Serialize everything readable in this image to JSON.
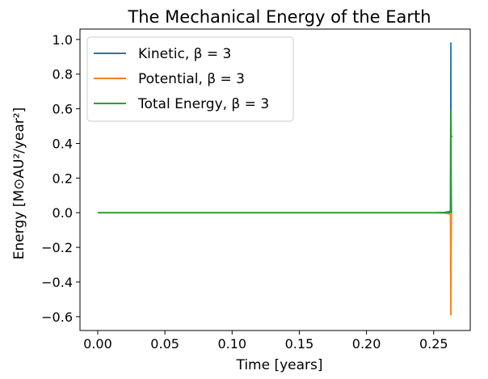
{
  "chart_data": {
    "type": "line",
    "title": "The Mechanical Energy of the Earth",
    "xlabel": "Time [years]",
    "ylabel": "Energy [M⊙AU²/year²]",
    "xlim": [
      -0.0132,
      0.2772
    ],
    "ylim": [
      -0.68,
      1.06
    ],
    "xticks": [
      0.0,
      0.05,
      0.1,
      0.15,
      0.2,
      0.25
    ],
    "xtick_labels": [
      "0.00",
      "0.05",
      "0.10",
      "0.15",
      "0.20",
      "0.25"
    ],
    "yticks": [
      -0.6,
      -0.4,
      -0.2,
      0.0,
      0.2,
      0.4,
      0.6,
      0.8,
      1.0
    ],
    "ytick_labels": [
      "−0.6",
      "−0.4",
      "−0.2",
      "0.0",
      "0.2",
      "0.4",
      "0.6",
      "0.8",
      "1.0"
    ],
    "grid": false,
    "legend_position": "top-left",
    "series": [
      {
        "name": "Kinetic, β = 3",
        "color": "#1f77b4",
        "x": [
          0.0,
          0.05,
          0.1,
          0.15,
          0.2,
          0.25,
          0.258,
          0.2615,
          0.2625,
          0.2628,
          0.263,
          0.2632,
          0.2634
        ],
        "y": [
          0.0,
          0.0,
          0.0,
          0.0,
          0.0,
          0.0,
          0.002,
          0.006,
          0.012,
          0.98,
          0.2,
          0.01,
          0.0
        ]
      },
      {
        "name": "Potential, β = 3",
        "color": "#ff7f0e",
        "x": [
          0.0,
          0.05,
          0.1,
          0.15,
          0.2,
          0.25,
          0.258,
          0.2615,
          0.2625,
          0.2628,
          0.263,
          0.2632,
          0.2634
        ],
        "y": [
          0.0,
          0.0,
          0.0,
          0.0,
          0.0,
          0.0,
          -0.002,
          -0.006,
          -0.012,
          -0.59,
          -0.2,
          -0.01,
          0.0
        ]
      },
      {
        "name": "Total Energy, β = 3",
        "color": "#2ca02c",
        "x": [
          0.0,
          0.05,
          0.1,
          0.15,
          0.2,
          0.25,
          0.258,
          0.2615,
          0.2625,
          0.2628,
          0.263,
          0.2634,
          0.2636,
          0.264
        ],
        "y": [
          0.0,
          0.0,
          0.0,
          0.0,
          0.0,
          0.0,
          0.0,
          0.0,
          0.0,
          0.59,
          0.44,
          0.44,
          0.44,
          0.44
        ]
      }
    ]
  }
}
